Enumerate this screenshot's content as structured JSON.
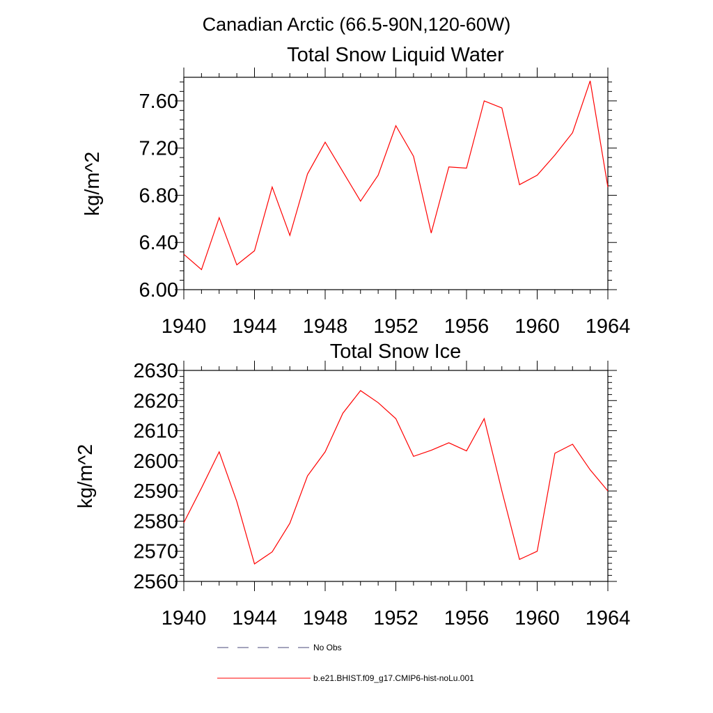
{
  "suptitle": "Canadian Arctic (66.5-90N,120-60W)",
  "chart_data": [
    {
      "type": "line",
      "title": "Total Snow Liquid Water",
      "xlabel": "",
      "ylabel": "kg/m^2",
      "xlim": [
        1940,
        1964
      ],
      "ylim": [
        6.0,
        7.8
      ],
      "x_ticks": [
        1940,
        1944,
        1948,
        1952,
        1956,
        1960,
        1964
      ],
      "x_tick_labels": [
        "1940",
        "1944",
        "1948",
        "1952",
        "1956",
        "1960",
        "1964"
      ],
      "y_ticks": [
        6.0,
        6.4,
        6.8,
        7.2,
        7.6
      ],
      "y_tick_labels": [
        "6.00",
        "6.40",
        "6.80",
        "7.20",
        "7.60"
      ],
      "series": [
        {
          "name": "b.e21.BHIST.f09_g17.CMIP6-hist-noLu.001",
          "color": "#ff0000",
          "x": [
            1940,
            1941,
            1942,
            1943,
            1944,
            1945,
            1946,
            1947,
            1948,
            1949,
            1950,
            1951,
            1952,
            1953,
            1954,
            1955,
            1956,
            1957,
            1958,
            1959,
            1960,
            1961,
            1962,
            1963,
            1964
          ],
          "values": [
            6.3,
            6.17,
            6.61,
            6.21,
            6.33,
            6.87,
            6.46,
            6.98,
            7.25,
            7.0,
            6.75,
            6.97,
            7.39,
            7.13,
            6.48,
            7.04,
            7.03,
            7.6,
            7.54,
            6.89,
            6.97,
            7.14,
            7.33,
            7.77,
            6.87
          ]
        }
      ]
    },
    {
      "type": "line",
      "title": "Total Snow Ice",
      "xlabel": "",
      "ylabel": "kg/m^2",
      "xlim": [
        1940,
        1964
      ],
      "ylim": [
        2560,
        2630
      ],
      "x_ticks": [
        1940,
        1944,
        1948,
        1952,
        1956,
        1960,
        1964
      ],
      "x_tick_labels": [
        "1940",
        "1944",
        "1948",
        "1952",
        "1956",
        "1960",
        "1964"
      ],
      "y_ticks": [
        2560,
        2570,
        2580,
        2590,
        2600,
        2610,
        2620,
        2630
      ],
      "y_tick_labels": [
        "2560",
        "2570",
        "2580",
        "2590",
        "2600",
        "2610",
        "2620",
        "2630"
      ],
      "series": [
        {
          "name": "b.e21.BHIST.f09_g17.CMIP6-hist-noLu.001",
          "color": "#ff0000",
          "x": [
            1940,
            1941,
            1942,
            1943,
            1944,
            1945,
            1946,
            1947,
            1948,
            1949,
            1950,
            1951,
            1952,
            1953,
            1954,
            1955,
            1956,
            1957,
            1958,
            1959,
            1960,
            1961,
            1962,
            1963,
            1964
          ],
          "values": [
            2579.5,
            2591.0,
            2603.0,
            2586.5,
            2565.8,
            2569.8,
            2579.3,
            2595.0,
            2603.0,
            2615.8,
            2623.3,
            2619.3,
            2614.0,
            2601.5,
            2603.5,
            2606.0,
            2603.3,
            2614.0,
            2590.0,
            2567.3,
            2570.0,
            2602.5,
            2605.5,
            2597.0,
            2590.0
          ]
        }
      ]
    }
  ],
  "legend": [
    {
      "label": "No Obs",
      "style": "dashed",
      "color": "#4a4a7a"
    },
    {
      "label": "b.e21.BHIST.f09_g17.CMIP6-hist-noLu.001",
      "style": "solid",
      "color": "#ff0000"
    }
  ]
}
